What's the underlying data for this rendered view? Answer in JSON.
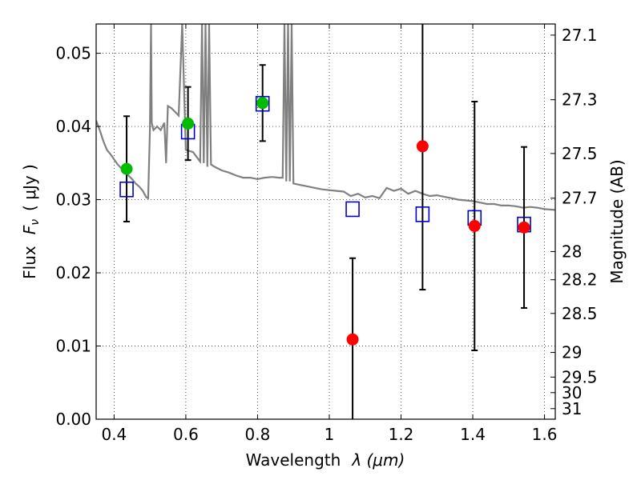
{
  "chart_data": {
    "type": "scatter",
    "xlabel_prefix": "Wavelength",
    "xlabel_math": "λ (μm)",
    "ylabel_prefix": "Flux",
    "ylabel_math": "F",
    "ylabel_sub": "ν",
    "ylabel_unit": "( μJy )",
    "y2label": "Magnitude (AB)",
    "xlim": [
      0.35,
      1.63
    ],
    "ylim": [
      0.0,
      0.054
    ],
    "grid": true,
    "x_ticks": [
      0.4,
      0.6,
      0.8,
      1.0,
      1.2,
      1.4,
      1.6
    ],
    "x_tick_labels": [
      "0.4",
      "0.6",
      "0.8",
      "1",
      "1.2",
      "1.4",
      "1.6"
    ],
    "y_ticks": [
      0.0,
      0.01,
      0.02,
      0.03,
      0.04,
      0.05
    ],
    "y_tick_labels": [
      "0.00",
      "0.01",
      "0.02",
      "0.03",
      "0.04",
      "0.05"
    ],
    "y2_ticks": [
      27.1,
      27.3,
      27.5,
      27.7,
      28,
      28.2,
      28.5,
      29,
      29.5,
      30,
      31
    ],
    "y2_tick_labels": [
      "27.1",
      "27.3",
      "27.5",
      "27.7",
      "28",
      "28.2",
      "28.5",
      "29",
      "29.5",
      "30",
      "31"
    ],
    "y2_zero_point_mag": 23.9,
    "series": [
      {
        "marker": "circle",
        "color": "#00bb00",
        "x": [
          0.435,
          0.606,
          0.814
        ],
        "y": [
          0.0342,
          0.0404,
          0.0432
        ],
        "yerr": [
          0.0072,
          0.005,
          0.0052
        ]
      },
      {
        "marker": "circle",
        "color": "#ff0000",
        "x": [
          1.065,
          1.26,
          1.405,
          1.543
        ],
        "y": [
          0.0109,
          0.0373,
          0.0264,
          0.0262
        ],
        "yerr": [
          0.0111,
          0.0196,
          0.017,
          0.011
        ]
      },
      {
        "marker": "open-square",
        "color": "#0000cc",
        "x": [
          0.435,
          0.606,
          0.814,
          1.065,
          1.26,
          1.405,
          1.543
        ],
        "y": [
          0.0314,
          0.0393,
          0.0431,
          0.0287,
          0.028,
          0.0275,
          0.0266
        ]
      },
      {
        "marker": "line",
        "color": "#808080",
        "x": [
          0.35,
          0.36,
          0.37,
          0.38,
          0.39,
          0.4,
          0.41,
          0.42,
          0.43,
          0.44,
          0.45,
          0.46,
          0.47,
          0.48,
          0.49,
          0.495,
          0.5,
          0.503,
          0.505,
          0.51,
          0.52,
          0.53,
          0.54,
          0.545,
          0.55,
          0.56,
          0.57,
          0.58,
          0.59,
          0.6,
          0.62,
          0.64,
          0.645,
          0.65,
          0.655,
          0.66,
          0.665,
          0.67,
          0.68,
          0.7,
          0.72,
          0.74,
          0.76,
          0.78,
          0.8,
          0.82,
          0.84,
          0.86,
          0.87,
          0.875,
          0.88,
          0.885,
          0.89,
          0.895,
          0.9,
          0.92,
          0.94,
          0.96,
          0.98,
          1.0,
          1.02,
          1.04,
          1.06,
          1.08,
          1.1,
          1.12,
          1.14,
          1.16,
          1.18,
          1.2,
          1.22,
          1.24,
          1.26,
          1.28,
          1.3,
          1.32,
          1.34,
          1.36,
          1.38,
          1.4,
          1.42,
          1.44,
          1.46,
          1.48,
          1.5,
          1.52,
          1.54,
          1.56,
          1.58,
          1.6,
          1.63
        ],
        "y": [
          0.0408,
          0.0395,
          0.038,
          0.0368,
          0.0362,
          0.0355,
          0.0348,
          0.0343,
          0.0338,
          0.0333,
          0.0328,
          0.0322,
          0.0318,
          0.0312,
          0.0303,
          0.0302,
          0.0395,
          0.054,
          0.0405,
          0.0395,
          0.04,
          0.0395,
          0.0405,
          0.035,
          0.0428,
          0.0425,
          0.042,
          0.0415,
          0.054,
          0.0368,
          0.0365,
          0.0352,
          0.054,
          0.035,
          0.054,
          0.0345,
          0.054,
          0.0348,
          0.0345,
          0.034,
          0.0337,
          0.0333,
          0.033,
          0.033,
          0.0328,
          0.033,
          0.0331,
          0.033,
          0.033,
          0.054,
          0.0325,
          0.054,
          0.0325,
          0.054,
          0.0322,
          0.032,
          0.0318,
          0.0316,
          0.0314,
          0.0313,
          0.0312,
          0.0311,
          0.0305,
          0.0308,
          0.0303,
          0.0305,
          0.0302,
          0.0316,
          0.0312,
          0.0315,
          0.0308,
          0.0312,
          0.0308,
          0.0305,
          0.0306,
          0.0304,
          0.0302,
          0.03,
          0.0299,
          0.0298,
          0.0296,
          0.0294,
          0.0294,
          0.0292,
          0.0292,
          0.0291,
          0.0289,
          0.029,
          0.0289,
          0.0287,
          0.0286
        ]
      }
    ]
  }
}
